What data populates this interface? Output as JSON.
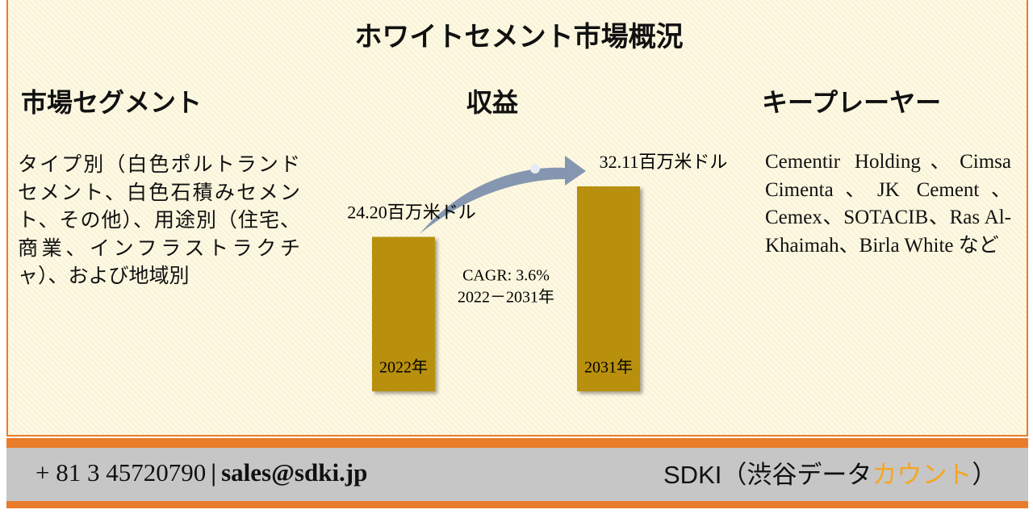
{
  "title": "ホワイトセメント市場概況",
  "segments": {
    "heading": "市場セグメント",
    "text": "タイプ別（白色ポルトランドセメント、白色石積みセメント、その他）、用途別（住宅、商業、インフラストラクチャ）、および地域別"
  },
  "players": {
    "heading": "キープレーヤー",
    "text": "Cementir Holding、Cimsa Cimenta、JK Cement、Cemex、SOTACIB、Ras Al-Khaimah、Birla White など"
  },
  "chart_data": {
    "type": "bar",
    "title": "収益",
    "categories": [
      "2022年",
      "2031年"
    ],
    "values": [
      24.2,
      32.11
    ],
    "value_labels": [
      "24.20百万米ドル",
      "32.11百万米ドル"
    ],
    "color": "#b8900a",
    "annotations": [
      "CAGR: 3.6%",
      "2022－2031年"
    ]
  },
  "footer": {
    "phone": "+ 81 3 45720790",
    "separator": "|",
    "email": "sales@sdki.jp",
    "company": "SDKI（渋谷データ",
    "company_highlight": "カウント",
    "company_end": "）"
  }
}
